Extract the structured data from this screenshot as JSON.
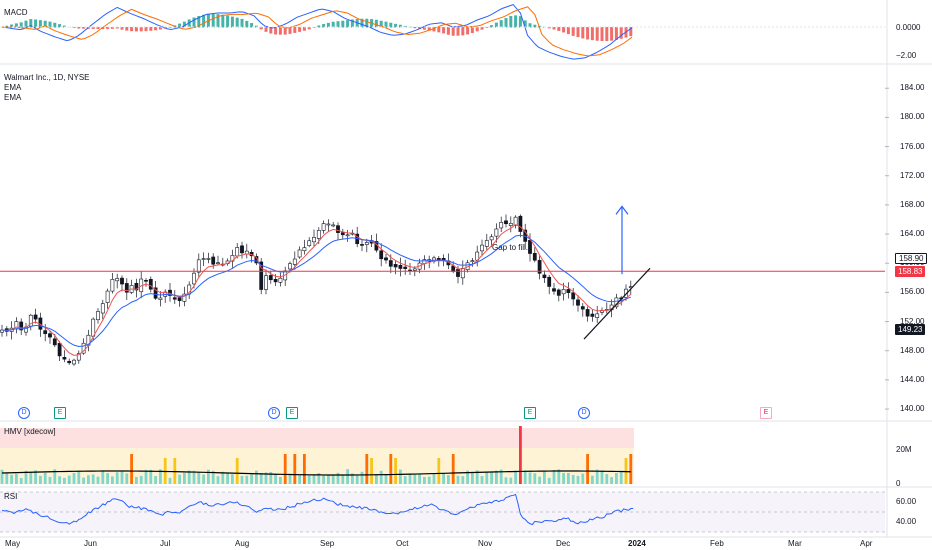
{
  "colors": {
    "up": "#26a69a",
    "down": "#ef5350",
    "ema_fast": "#ef5350",
    "ema_slow": "#2962ff",
    "macd_line": "#2962ff",
    "signal_line": "#ff6d00",
    "hline": "#f23645",
    "rsi": "#2962ff",
    "hmv_line": "#000000",
    "arrow": "#2962ff"
  },
  "macd_pane": {
    "title": "MACD",
    "ticks": [
      "0.0000",
      "−2.00"
    ]
  },
  "price_pane": {
    "symbol_line": "Walmart Inc., 1D, NYSE",
    "indicator_1": "EMA",
    "indicator_2": "EMA",
    "annotation": "Gap to fill.",
    "ticks": [
      "184.00",
      "180.00",
      "176.00",
      "172.00",
      "168.00",
      "164.00",
      "160.00",
      "156.00",
      "152.00",
      "148.00",
      "144.00",
      "140.00"
    ],
    "price_tags": [
      {
        "text": "158.90",
        "style": "outline"
      },
      {
        "text": "158.83",
        "style": "red"
      },
      {
        "text": "149.23",
        "style": "dark"
      }
    ]
  },
  "events": [
    {
      "glyph": "D",
      "type": "d"
    },
    {
      "glyph": "E",
      "type": "e"
    },
    {
      "glyph": "D",
      "type": "d"
    },
    {
      "glyph": "E",
      "type": "e"
    },
    {
      "glyph": "E",
      "type": "e"
    },
    {
      "glyph": "D",
      "type": "d"
    },
    {
      "glyph": "E",
      "type": "future"
    }
  ],
  "hmv_pane": {
    "title": "HMV [xdecow]",
    "ticks": [
      "20M",
      "0"
    ]
  },
  "rsi_pane": {
    "title": "RSI",
    "ticks": [
      "60.00",
      "40.00"
    ]
  },
  "time_axis": [
    "May",
    "Jun",
    "Jul",
    "Aug",
    "Sep",
    "Oct",
    "Nov",
    "Dec",
    "2024",
    "Feb",
    "Mar",
    "Apr"
  ],
  "chart_data": {
    "type": "candlestick",
    "symbol": "Walmart Inc.",
    "interval": "1D",
    "exchange": "NYSE",
    "y_range": [
      138.5,
      186.5
    ],
    "hline": 158.9,
    "last_price": 158.83,
    "price_label": 149.23,
    "close_anchors": [
      [
        0,
        150.5
      ],
      [
        6,
        150.8
      ],
      [
        12,
        151.6
      ],
      [
        16,
        150.9
      ],
      [
        20,
        151.2
      ],
      [
        24,
        153.0
      ],
      [
        28,
        152.4
      ],
      [
        32,
        151.0
      ],
      [
        36,
        150.0
      ],
      [
        41,
        149.4
      ],
      [
        46,
        148.0
      ],
      [
        52,
        146.8
      ],
      [
        57,
        146.5
      ],
      [
        62,
        147.4
      ],
      [
        66,
        148.5
      ],
      [
        72,
        150.5
      ],
      [
        77,
        152.6
      ],
      [
        82,
        154.0
      ],
      [
        87,
        155.4
      ],
      [
        92,
        157.6
      ],
      [
        96,
        158.2
      ],
      [
        100,
        156.8
      ],
      [
        104,
        155.7
      ],
      [
        108,
        156.6
      ],
      [
        112,
        156.7
      ],
      [
        117,
        157.7
      ],
      [
        121,
        157.3
      ],
      [
        125,
        155.9
      ],
      [
        129,
        155.2
      ],
      [
        134,
        155.9
      ],
      [
        138,
        155.7
      ],
      [
        142,
        155.0
      ],
      [
        147,
        154.7
      ],
      [
        152,
        155.6
      ],
      [
        156,
        157.0
      ],
      [
        160,
        158.6
      ],
      [
        164,
        160.5
      ],
      [
        168,
        160.5
      ],
      [
        173,
        160.4
      ],
      [
        177,
        159.8
      ],
      [
        181,
        160.2
      ],
      [
        186,
        160.2
      ],
      [
        190,
        161.0
      ],
      [
        195,
        162.0
      ],
      [
        199,
        161.7
      ],
      [
        203,
        161.6
      ],
      [
        207,
        161.4
      ],
      [
        212,
        159.8
      ],
      [
        216,
        156.7
      ],
      [
        220,
        158.3
      ],
      [
        225,
        157.6
      ],
      [
        229,
        157.5
      ],
      [
        233,
        158.2
      ],
      [
        237,
        159.3
      ],
      [
        242,
        160.1
      ],
      [
        246,
        161.3
      ],
      [
        250,
        162.2
      ],
      [
        254,
        162.8
      ],
      [
        259,
        163.8
      ],
      [
        263,
        164.3
      ],
      [
        267,
        165.2
      ],
      [
        271,
        165.7
      ],
      [
        276,
        165.0
      ],
      [
        280,
        164.5
      ],
      [
        284,
        163.6
      ],
      [
        288,
        164.0
      ],
      [
        293,
        163.8
      ],
      [
        297,
        162.8
      ],
      [
        301,
        162.6
      ],
      [
        305,
        162.7
      ],
      [
        310,
        162.2
      ],
      [
        314,
        161.6
      ],
      [
        318,
        160.2
      ],
      [
        322,
        160.0
      ],
      [
        327,
        159.3
      ],
      [
        331,
        159.0
      ],
      [
        335,
        158.9
      ],
      [
        339,
        158.8
      ],
      [
        344,
        159.2
      ],
      [
        348,
        159.9
      ],
      [
        352,
        160.6
      ],
      [
        356,
        160.3
      ],
      [
        361,
        160.5
      ],
      [
        365,
        160.8
      ],
      [
        369,
        159.9
      ],
      [
        373,
        159.6
      ],
      [
        378,
        158.5
      ],
      [
        382,
        158.6
      ],
      [
        386,
        159.5
      ],
      [
        390,
        160.1
      ],
      [
        395,
        161.3
      ],
      [
        399,
        162.1
      ],
      [
        403,
        162.9
      ],
      [
        407,
        163.5
      ],
      [
        412,
        164.4
      ],
      [
        416,
        165.4
      ],
      [
        420,
        165.5
      ],
      [
        424,
        165.6
      ],
      [
        429,
        166.2
      ],
      [
        433,
        164.0
      ],
      [
        437,
        162.5
      ],
      [
        441,
        160.5
      ],
      [
        446,
        159.7
      ],
      [
        450,
        158.2
      ],
      [
        454,
        157.5
      ],
      [
        458,
        156.0
      ],
      [
        463,
        155.5
      ],
      [
        467,
        156.4
      ],
      [
        471,
        155.9
      ],
      [
        475,
        155.2
      ],
      [
        480,
        154.0
      ],
      [
        484,
        153.5
      ],
      [
        488,
        152.4
      ],
      [
        492,
        152.6
      ],
      [
        497,
        153.1
      ],
      [
        501,
        153.6
      ],
      [
        505,
        154.0
      ],
      [
        509,
        154.5
      ],
      [
        514,
        155.2
      ],
      [
        518,
        155.8
      ],
      [
        522,
        156.5
      ],
      [
        526,
        157.4
      ]
    ],
    "macd_anchors": [
      [
        0,
        0.0
      ],
      [
        8,
        -0.1
      ],
      [
        16,
        -0.2
      ],
      [
        24,
        0.1
      ],
      [
        32,
        -0.3
      ],
      [
        44,
        -0.7
      ],
      [
        55,
        -1.0
      ],
      [
        64,
        -0.6
      ],
      [
        74,
        0.1
      ],
      [
        86,
        0.9
      ],
      [
        96,
        1.4
      ],
      [
        106,
        1.0
      ],
      [
        118,
        0.6
      ],
      [
        128,
        0.2
      ],
      [
        140,
        -0.2
      ],
      [
        150,
        0.0
      ],
      [
        160,
        0.5
      ],
      [
        170,
        0.9
      ],
      [
        180,
        1.0
      ],
      [
        190,
        1.0
      ],
      [
        200,
        1.1
      ],
      [
        210,
        0.8
      ],
      [
        218,
        0.1
      ],
      [
        226,
        -0.1
      ],
      [
        236,
        0.2
      ],
      [
        246,
        0.7
      ],
      [
        256,
        1.0
      ],
      [
        266,
        1.3
      ],
      [
        276,
        1.1
      ],
      [
        286,
        0.6
      ],
      [
        296,
        0.3
      ],
      [
        306,
        0.0
      ],
      [
        316,
        -0.4
      ],
      [
        326,
        -0.6
      ],
      [
        336,
        -0.5
      ],
      [
        346,
        -0.2
      ],
      [
        356,
        0.2
      ],
      [
        366,
        0.3
      ],
      [
        376,
        0.0
      ],
      [
        386,
        0.1
      ],
      [
        396,
        0.5
      ],
      [
        406,
        0.8
      ],
      [
        416,
        1.3
      ],
      [
        426,
        1.6
      ],
      [
        432,
        1.0
      ],
      [
        438,
        -0.6
      ],
      [
        446,
        -1.4
      ],
      [
        456,
        -1.8
      ],
      [
        466,
        -2.1
      ],
      [
        476,
        -2.3
      ],
      [
        486,
        -2.2
      ],
      [
        496,
        -1.8
      ],
      [
        506,
        -1.3
      ],
      [
        516,
        -0.6
      ],
      [
        526,
        0.0
      ]
    ],
    "rsi_anchors": [
      [
        0,
        52
      ],
      [
        10,
        50
      ],
      [
        20,
        52
      ],
      [
        30,
        48
      ],
      [
        40,
        44
      ],
      [
        50,
        40
      ],
      [
        58,
        39
      ],
      [
        66,
        44
      ],
      [
        76,
        52
      ],
      [
        86,
        58
      ],
      [
        96,
        64
      ],
      [
        104,
        56
      ],
      [
        112,
        55
      ],
      [
        122,
        52
      ],
      [
        130,
        47
      ],
      [
        140,
        50
      ],
      [
        148,
        49
      ],
      [
        156,
        55
      ],
      [
        164,
        60
      ],
      [
        174,
        57
      ],
      [
        184,
        58
      ],
      [
        194,
        60
      ],
      [
        204,
        56
      ],
      [
        212,
        50
      ],
      [
        220,
        54
      ],
      [
        230,
        52
      ],
      [
        240,
        55
      ],
      [
        250,
        59
      ],
      [
        260,
        62
      ],
      [
        270,
        63
      ],
      [
        280,
        58
      ],
      [
        290,
        55
      ],
      [
        300,
        54
      ],
      [
        310,
        52
      ],
      [
        320,
        47
      ],
      [
        330,
        49
      ],
      [
        340,
        52
      ],
      [
        350,
        56
      ],
      [
        360,
        57
      ],
      [
        370,
        50
      ],
      [
        380,
        48
      ],
      [
        390,
        54
      ],
      [
        400,
        58
      ],
      [
        410,
        60
      ],
      [
        420,
        64
      ],
      [
        428,
        66
      ],
      [
        433,
        45
      ],
      [
        440,
        38
      ],
      [
        450,
        41
      ],
      [
        460,
        40
      ],
      [
        470,
        44
      ],
      [
        480,
        38
      ],
      [
        490,
        42
      ],
      [
        500,
        45
      ],
      [
        510,
        50
      ],
      [
        520,
        52
      ],
      [
        526,
        55
      ]
    ],
    "annotations": [
      "Gap to fill."
    ]
  }
}
